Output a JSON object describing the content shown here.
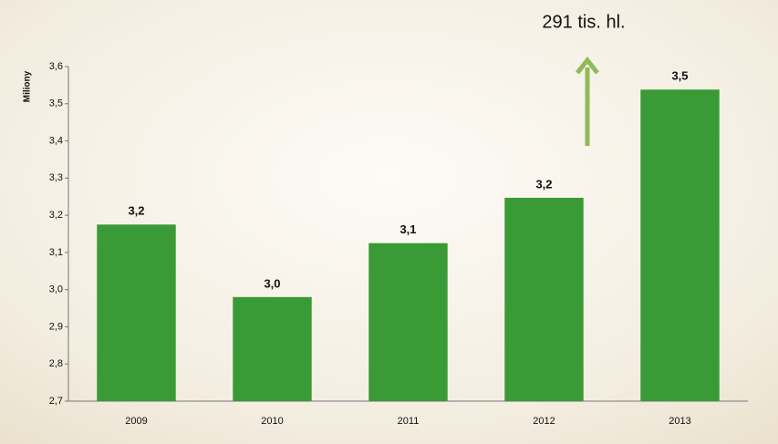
{
  "chart_data": {
    "type": "bar",
    "y_label": "Miliony",
    "annotation": "291 tis. hl.",
    "categories": [
      "2009",
      "2010",
      "2011",
      "2012",
      "2013"
    ],
    "values": [
      3.175,
      2.98,
      3.125,
      3.247,
      3.538
    ],
    "value_labels": [
      "3,2",
      "3,0",
      "3,1",
      "3,2",
      "3,5"
    ],
    "color": "#3a9a35",
    "ylim": [
      2.7,
      3.6
    ],
    "yticks": [
      {
        "value": 2.7,
        "label": "2,7"
      },
      {
        "value": 2.8,
        "label": "2,8"
      },
      {
        "value": 2.9,
        "label": "2,9"
      },
      {
        "value": 3.0,
        "label": "3,0"
      },
      {
        "value": 3.1,
        "label": "3,1"
      },
      {
        "value": 3.2,
        "label": "3,2"
      },
      {
        "value": 3.3,
        "label": "3,3"
      },
      {
        "value": 3.4,
        "label": "3,4"
      },
      {
        "value": 3.5,
        "label": "3,5"
      },
      {
        "value": 3.6,
        "label": "3,6"
      }
    ]
  }
}
